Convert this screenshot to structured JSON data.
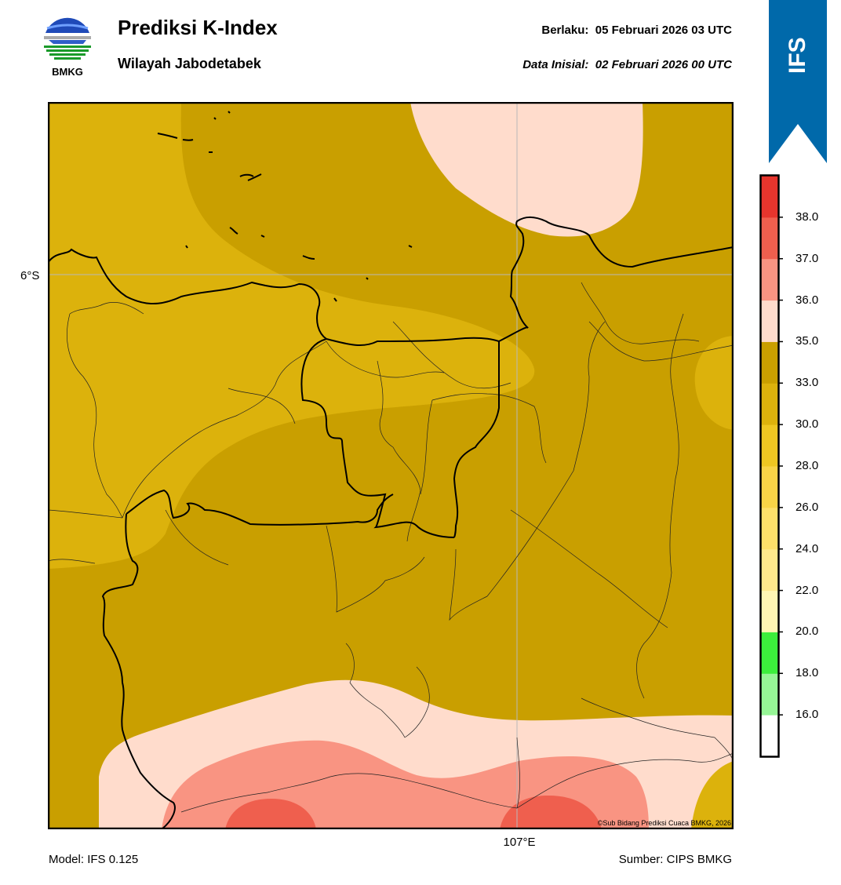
{
  "header": {
    "logo_text": "BMKG",
    "title": "Prediksi K-Index",
    "subtitle": "Wilayah Jabodetabek",
    "valid_label": "Berlaku:",
    "valid_value": "05 Februari 2026 03 UTC",
    "init_label": "Data Inisial:",
    "init_value": "02 Februari 2026 00 UTC"
  },
  "ribbon": {
    "text": "IFS",
    "color": "#0069aa"
  },
  "map": {
    "lat_label": "6°S",
    "lon_label": "107°E",
    "credit": "©Sub Bidang Prediksi Cuaca BMKG, 2026"
  },
  "footer": {
    "model": "Model: IFS 0.125",
    "source": "Sumber: CIPS BMKG"
  },
  "colorbar": {
    "ticks": [
      "16.0",
      "18.0",
      "20.0",
      "22.0",
      "24.0",
      "26.0",
      "28.0",
      "30.0",
      "33.0",
      "35.0",
      "36.0",
      "37.0",
      "38.0"
    ],
    "bins": [
      {
        "color": "#ffffff"
      },
      {
        "color": "#96f596"
      },
      {
        "color": "#3cee3c"
      },
      {
        "color": "#fff6b4"
      },
      {
        "color": "#ffe98c"
      },
      {
        "color": "#fde06a"
      },
      {
        "color": "#f8d447"
      },
      {
        "color": "#eec722"
      },
      {
        "color": "#dcb20c"
      },
      {
        "color": "#c99f00"
      },
      {
        "color": "#ffdccc"
      },
      {
        "color": "#f99482"
      },
      {
        "color": "#ef5f4e"
      },
      {
        "color": "#e6352d"
      }
    ]
  }
}
